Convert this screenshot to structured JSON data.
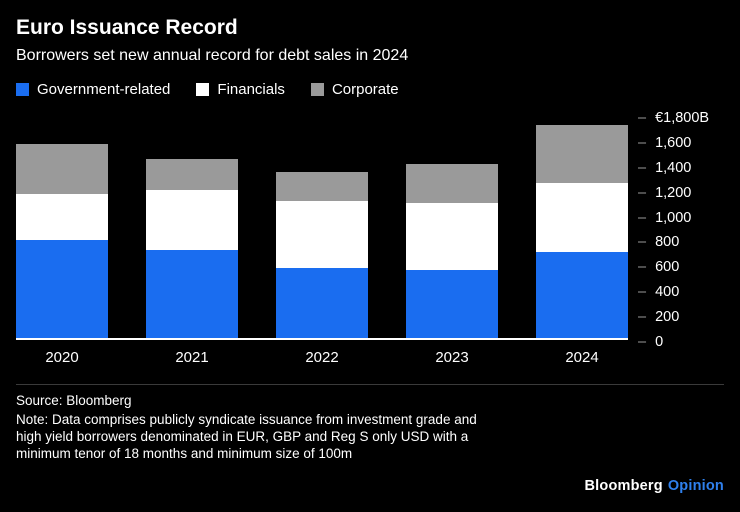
{
  "header": {
    "title": "Euro Issuance Record",
    "subtitle": "Borrowers set new annual record for debt sales in 2024"
  },
  "legend": [
    {
      "label": "Government-related",
      "color": "#1a6df0"
    },
    {
      "label": "Financials",
      "color": "#ffffff"
    },
    {
      "label": "Corporate",
      "color": "#9a9a9a"
    }
  ],
  "chart_data": {
    "type": "bar",
    "stacked": true,
    "categories": [
      "2020",
      "2021",
      "2022",
      "2023",
      "2024"
    ],
    "series": [
      {
        "name": "Government-related",
        "color": "#1a6df0",
        "values": [
          800,
          720,
          575,
          560,
          705
        ]
      },
      {
        "name": "Financials",
        "color": "#ffffff",
        "values": [
          380,
          495,
          545,
          545,
          560
        ]
      },
      {
        "name": "Corporate",
        "color": "#9a9a9a",
        "values": [
          410,
          250,
          235,
          315,
          480
        ]
      }
    ],
    "title": "Euro Issuance Record",
    "xlabel": "",
    "ylabel": "",
    "ylim": [
      0,
      1800
    ],
    "ytick_step": 200,
    "ytick_labels": [
      "0",
      "200",
      "400",
      "600",
      "800",
      "1,000",
      "1,200",
      "1,400",
      "1,600",
      "€1,800B"
    ],
    "legend_position": "top",
    "grid": false
  },
  "footer": {
    "source": "Source: Bloomberg",
    "note": "Note: Data comprises publicly syndicate issuance from investment grade and high yield borrowers denominated in EUR, GBP and Reg S only USD with a minimum tenor of 18 months and minimum size of 100m",
    "brand": {
      "bloomberg": "Bloomberg",
      "opinion": "Opinion"
    }
  }
}
